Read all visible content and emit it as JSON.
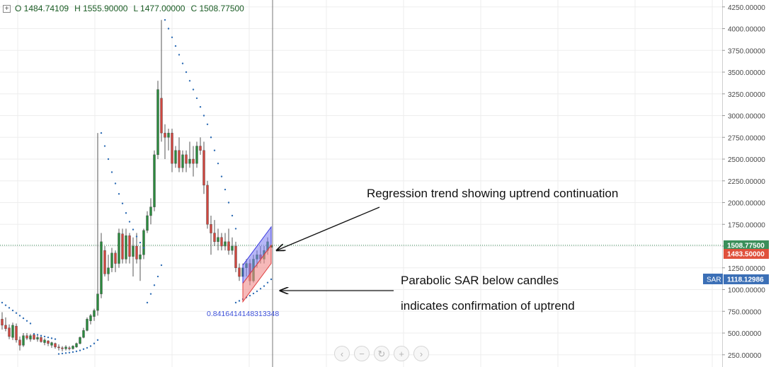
{
  "ohlc": {
    "open": "O 1484.74109",
    "high": "H 1555.90000",
    "low": "L 1477.00000",
    "close": "C 1508.77500"
  },
  "nav_icons": [
    "chevron-left-icon",
    "zoom-out-icon",
    "reset-icon",
    "zoom-in-icon",
    "chevron-right-icon"
  ],
  "colors": {
    "bull": "#2b8a3e",
    "bear": "#d0463f",
    "sar": "#2f6db5",
    "grid": "#ededed",
    "last_price": "#3a8f5a",
    "open_price": "#e0513c",
    "sar_tag": "#3b6fb6",
    "upper_channel": "#7b7bf0",
    "lower_channel": "#f08a8a"
  },
  "chart_data": {
    "type": "candlestick",
    "y_axis": {
      "ylim": [
        0,
        4300
      ],
      "ticks": [
        250,
        500,
        750,
        1000,
        1250,
        1500,
        1750,
        2000,
        2250,
        2500,
        2750,
        3000,
        3250,
        3500,
        3750,
        4000,
        4250
      ],
      "tick_labels": [
        "250.00000",
        "500.00000",
        "750.00000",
        "1000.00000",
        "1250.00000",
        "1500.00000",
        "1750.00000",
        "2000.00000",
        "2250.00000",
        "2500.00000",
        "2750.00000",
        "3000.00000",
        "3250.00000",
        "3500.00000",
        "3750.00000",
        "4000.00000",
        "4250.00000"
      ],
      "position": "right"
    },
    "grid": true,
    "price_tags": [
      {
        "label": "",
        "value": "1508.77500",
        "price": 1508.775,
        "color": "#3a8f5a"
      },
      {
        "label": "",
        "value": "1483.50000",
        "price": 1483.5,
        "color": "#e0513c"
      },
      {
        "label": "SAR",
        "value": "1118.12986",
        "price": 1118.12986,
        "color": "#3b6fb6"
      }
    ],
    "last_price": 1508.775,
    "cursor_index": 76,
    "channel": {
      "start_index": 68,
      "end_index": 76,
      "upper_start": 1280,
      "upper_end": 1720,
      "mid_start": 1070,
      "mid_end": 1510,
      "lower_start": 860,
      "lower_end": 1300
    },
    "channel_label": "0.8416414148313348",
    "annotations": [
      {
        "lines": [
          "Regression trend showing uptrend continuation"
        ],
        "arrow_to": [
          76,
          1500
        ],
        "text_anchor": [
          96,
          2270
        ]
      },
      {
        "lines": [
          "Parabolic SAR below candles",
          "indicates confirmation of uptrend"
        ],
        "arrow_to": [
          77,
          1000
        ],
        "text_anchor": [
          111,
          1000
        ]
      }
    ],
    "candles": [
      [
        660,
        740,
        540,
        590
      ],
      [
        590,
        680,
        520,
        550
      ],
      [
        560,
        600,
        430,
        460
      ],
      [
        450,
        620,
        420,
        590
      ],
      [
        580,
        610,
        390,
        420
      ],
      [
        420,
        460,
        300,
        360
      ],
      [
        360,
        500,
        340,
        470
      ],
      [
        470,
        500,
        420,
        440
      ],
      [
        430,
        490,
        400,
        470
      ],
      [
        480,
        500,
        420,
        430
      ],
      [
        430,
        470,
        400,
        450
      ],
      [
        450,
        470,
        390,
        400
      ],
      [
        390,
        440,
        360,
        420
      ],
      [
        410,
        420,
        350,
        380
      ],
      [
        360,
        400,
        330,
        390
      ],
      [
        380,
        390,
        320,
        340
      ],
      [
        340,
        370,
        300,
        330
      ],
      [
        330,
        350,
        290,
        320
      ],
      [
        320,
        360,
        300,
        340
      ],
      [
        330,
        350,
        300,
        320
      ],
      [
        320,
        360,
        310,
        350
      ],
      [
        340,
        390,
        330,
        380
      ],
      [
        380,
        460,
        370,
        450
      ],
      [
        450,
        560,
        440,
        530
      ],
      [
        530,
        680,
        520,
        660
      ],
      [
        640,
        720,
        600,
        700
      ],
      [
        690,
        780,
        640,
        760
      ],
      [
        760,
        2800,
        700,
        950
      ],
      [
        950,
        1650,
        900,
        1550
      ],
      [
        1450,
        1500,
        1150,
        1180
      ],
      [
        1180,
        1400,
        1100,
        1250
      ],
      [
        1250,
        1480,
        1200,
        1420
      ],
      [
        1420,
        1450,
        1200,
        1300
      ],
      [
        1300,
        1700,
        1250,
        1650
      ],
      [
        1640,
        1700,
        1300,
        1350
      ],
      [
        1350,
        1700,
        1300,
        1620
      ],
      [
        1620,
        1650,
        1300,
        1380
      ],
      [
        1380,
        1600,
        1150,
        1500
      ],
      [
        1500,
        1650,
        1300,
        1350
      ],
      [
        1350,
        1500,
        1100,
        1400
      ],
      [
        1400,
        1700,
        1350,
        1680
      ],
      [
        1680,
        1900,
        1650,
        1850
      ],
      [
        1850,
        2050,
        1750,
        1950
      ],
      [
        1950,
        2600,
        1900,
        2550
      ],
      [
        2550,
        3400,
        2500,
        3300
      ],
      [
        3200,
        4100,
        2700,
        2800
      ],
      [
        2800,
        2900,
        2500,
        2750
      ],
      [
        2750,
        2850,
        2600,
        2800
      ],
      [
        2800,
        2850,
        2350,
        2450
      ],
      [
        2450,
        2650,
        2400,
        2600
      ],
      [
        2600,
        2750,
        2350,
        2400
      ],
      [
        2400,
        2600,
        2350,
        2550
      ],
      [
        2550,
        2600,
        2350,
        2450
      ],
      [
        2450,
        2700,
        2400,
        2500
      ],
      [
        2500,
        2650,
        2300,
        2450
      ],
      [
        2450,
        2700,
        2400,
        2650
      ],
      [
        2650,
        2750,
        2550,
        2600
      ],
      [
        2600,
        2700,
        2100,
        2200
      ],
      [
        2200,
        2250,
        1700,
        1750
      ],
      [
        1750,
        1850,
        1400,
        1650
      ],
      [
        1650,
        1800,
        1500,
        1550
      ],
      [
        1550,
        1700,
        1450,
        1600
      ],
      [
        1600,
        1650,
        1450,
        1500
      ],
      [
        1500,
        1650,
        1450,
        1550
      ],
      [
        1550,
        1700,
        1400,
        1450
      ],
      [
        1450,
        1600,
        1400,
        1500
      ],
      [
        1500,
        1550,
        1200,
        1250
      ],
      [
        1250,
        1300,
        1100,
        1150
      ],
      [
        1150,
        1300,
        900,
        1250
      ],
      [
        1250,
        1350,
        1150,
        1300
      ],
      [
        1300,
        1350,
        1050,
        1100
      ],
      [
        1100,
        1400,
        1080,
        1350
      ],
      [
        1350,
        1450,
        1250,
        1400
      ],
      [
        1400,
        1500,
        1300,
        1350
      ],
      [
        1350,
        1500,
        1300,
        1450
      ],
      [
        1450,
        1600,
        1400,
        1550
      ],
      [
        1484.74109,
        1555.9,
        1477,
        1508.775
      ]
    ],
    "sar_segments": [
      {
        "start": 0,
        "values": [
          850,
          820,
          790,
          760,
          730,
          700,
          670,
          640,
          610
        ]
      },
      {
        "start": 9,
        "values": [
          490,
          480,
          470,
          460,
          450,
          440,
          430
        ]
      },
      {
        "start": 16,
        "values": [
          260,
          265,
          270,
          275,
          282,
          290,
          300,
          315,
          330,
          350,
          380,
          420
        ]
      },
      {
        "start": 28,
        "values": [
          2800,
          2650,
          2500,
          2350,
          2220,
          2100,
          1990,
          1880,
          1780,
          1690,
          1610,
          1540,
          1480
        ]
      },
      {
        "start": 41,
        "values": [
          850,
          950,
          1050,
          1150,
          1280
        ]
      },
      {
        "start": 46,
        "values": [
          4100,
          4000,
          3900,
          3800,
          3700,
          3600,
          3500,
          3400,
          3300,
          3200,
          3100,
          3000,
          2900,
          2750,
          2600,
          2450,
          2300,
          2150,
          2000,
          1850,
          1700
        ]
      },
      {
        "start": 66,
        "values": [
          850,
          870,
          890,
          910,
          930,
          955,
          980,
          1010,
          1040,
          1080,
          1118.13
        ]
      }
    ]
  }
}
